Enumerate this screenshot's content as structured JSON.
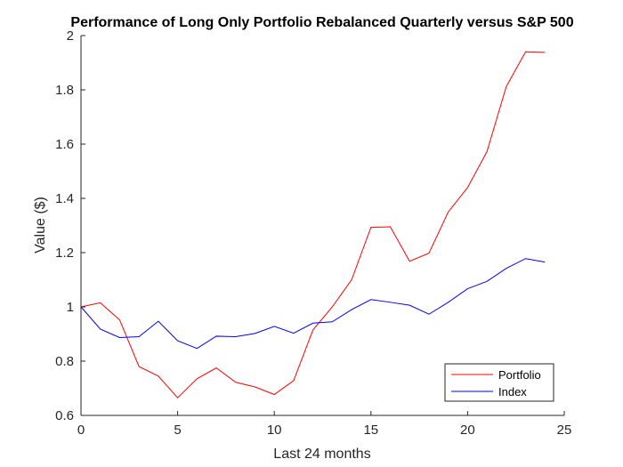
{
  "chart_data": {
    "type": "line",
    "title": "Performance of Long Only Portfolio Rebalanced Quarterly versus S&P 500",
    "xlabel": "Last 24 months",
    "ylabel": "Value ($)",
    "xlim": [
      0,
      25
    ],
    "ylim": [
      0.6,
      2
    ],
    "xticks": [
      0,
      5,
      10,
      15,
      20,
      25
    ],
    "yticks": [
      0.6,
      0.8,
      1,
      1.2,
      1.4,
      1.6,
      1.8,
      2
    ],
    "xtick_labels": [
      "0",
      "5",
      "10",
      "15",
      "20",
      "25"
    ],
    "ytick_labels": [
      "0.6",
      "0.8",
      "1",
      "1.2",
      "1.4",
      "1.6",
      "1.8",
      "2"
    ],
    "grid": false,
    "legend_position": "bottom-right",
    "x": [
      0,
      1,
      2,
      3,
      4,
      5,
      6,
      7,
      8,
      9,
      10,
      11,
      12,
      13,
      14,
      15,
      16,
      17,
      18,
      19,
      20,
      21,
      22,
      23,
      24
    ],
    "series": [
      {
        "name": "Portfolio",
        "color": "#ff0000",
        "values": [
          1.0,
          1.015,
          0.952,
          0.78,
          0.745,
          0.665,
          0.735,
          0.775,
          0.722,
          0.705,
          0.677,
          0.728,
          0.915,
          1.0,
          1.1,
          1.293,
          1.295,
          1.168,
          1.198,
          1.35,
          1.44,
          1.572,
          1.812,
          1.94,
          1.938
        ]
      },
      {
        "name": "Index",
        "color": "#0000ff",
        "values": [
          1.0,
          0.918,
          0.887,
          0.89,
          0.947,
          0.875,
          0.847,
          0.892,
          0.89,
          0.902,
          0.928,
          0.903,
          0.94,
          0.945,
          0.99,
          1.027,
          1.017,
          1.006,
          0.973,
          1.017,
          1.067,
          1.094,
          1.142,
          1.178,
          1.165
        ]
      }
    ]
  }
}
